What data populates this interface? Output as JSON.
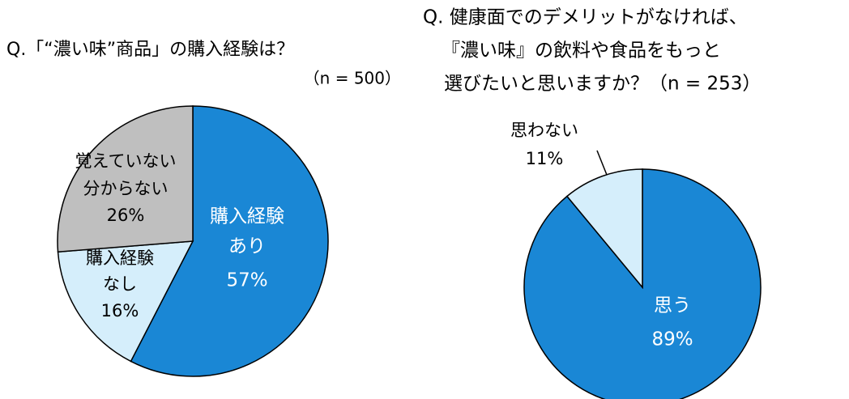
{
  "chart_data": [
    {
      "type": "pie",
      "title": "Q.「“濃い味”商品」の購入経験は？",
      "subtitle": "（n = 500）",
      "categories": [
        [
          "購入経験",
          "あり"
        ],
        [
          "購入経験",
          "なし"
        ],
        [
          "覚えていない",
          "分からない"
        ]
      ],
      "values": [
        57,
        16,
        26
      ],
      "value_labels": [
        "57%",
        "16%",
        "26%"
      ],
      "colors": [
        "#1a87d5",
        "#d5eefb",
        "#bfbfbf"
      ]
    },
    {
      "type": "pie",
      "title": [
        "Q. 健康面でのデメリットがなければ、",
        "『濃い味』の飲料や食品をもっと",
        "選びたいと思いますか？（n = 253）"
      ],
      "categories": [
        [
          "思う"
        ],
        [
          "思わない"
        ]
      ],
      "values": [
        89,
        11
      ],
      "value_labels": [
        "89%",
        "11%"
      ],
      "colors": [
        "#1a87d5",
        "#d5eefb"
      ]
    }
  ]
}
